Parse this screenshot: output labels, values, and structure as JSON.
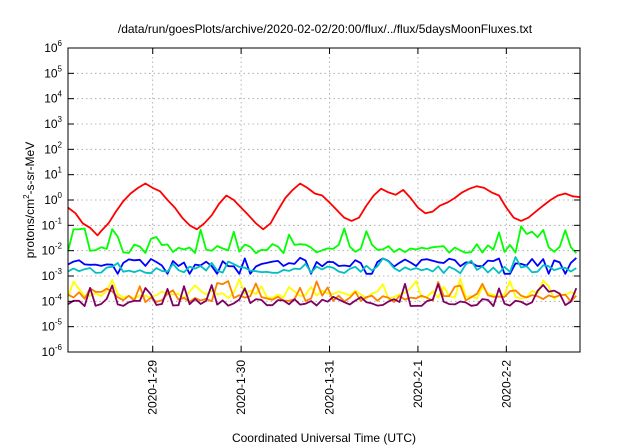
{
  "chart_data": {
    "type": "line",
    "title": "/data/run/goesPlots/archive/2020-02-02/20:00/flux/../flux/5daysMoonFluxes.txt",
    "xlabel": "Coordinated Universal Time (UTC)",
    "ylabel": {
      "base": "protons/cm",
      "sup": "2",
      "rest": "-s-sr-MeV"
    },
    "y_scale": "log",
    "ylim": [
      1e-06,
      1000000.0
    ],
    "y_ticks": [
      {
        "exp": "-6",
        "value": 1e-06
      },
      {
        "exp": "-5",
        "value": 1e-05
      },
      {
        "exp": "-4",
        "value": 0.0001
      },
      {
        "exp": "-3",
        "value": 0.001
      },
      {
        "exp": "-2",
        "value": 0.01
      },
      {
        "exp": "-1",
        "value": 0.1
      },
      {
        "exp": "0",
        "value": 1
      },
      {
        "exp": "1",
        "value": 10.0
      },
      {
        "exp": "2",
        "value": 100.0
      },
      {
        "exp": "3",
        "value": 1000.0
      },
      {
        "exp": "4",
        "value": 10000.0
      },
      {
        "exp": "5",
        "value": 100000.0
      },
      {
        "exp": "6",
        "value": 1000000.0
      }
    ],
    "y_tick_base": "10",
    "xlim": [
      "2020-01-28T01:00",
      "2020-02-02T20:00"
    ],
    "x_ticks": [
      {
        "label": "2020-1-29",
        "value": "2020-01-29T00:00"
      },
      {
        "label": "2020-1-30",
        "value": "2020-01-30T00:00"
      },
      {
        "label": "2020-1-31",
        "value": "2020-01-31T00:00"
      },
      {
        "label": "2020-2-1",
        "value": "2020-02-01T00:00"
      },
      {
        "label": "2020-2-2",
        "value": "2020-02-02T00:00"
      }
    ],
    "grid": true,
    "legend": "none",
    "series": [
      {
        "color": "#ff0000",
        "points": [
          [
            "2020-01-28T01:00",
            0.5
          ],
          [
            "2020-01-28T03:00",
            0.3
          ],
          [
            "2020-01-28T05:00",
            0.12
          ],
          [
            "2020-01-28T07:00",
            0.08
          ],
          [
            "2020-01-28T09:00",
            0.04
          ],
          [
            "2020-01-28T10:00",
            0.06
          ],
          [
            "2020-01-28T12:00",
            0.12
          ],
          [
            "2020-01-28T14:00",
            0.35
          ],
          [
            "2020-01-28T16:00",
            0.9
          ],
          [
            "2020-01-28T18:00",
            1.8
          ],
          [
            "2020-01-28T20:00",
            3.0
          ],
          [
            "2020-01-28T22:00",
            4.5
          ],
          [
            "2020-01-29T00:00",
            3.0
          ],
          [
            "2020-01-29T02:00",
            2.2
          ],
          [
            "2020-01-29T04:00",
            1.0
          ],
          [
            "2020-01-29T06:00",
            0.5
          ],
          [
            "2020-01-29T08:00",
            0.2
          ],
          [
            "2020-01-29T10:00",
            0.1
          ],
          [
            "2020-01-29T12:00",
            0.07
          ],
          [
            "2020-01-29T14:00",
            0.12
          ],
          [
            "2020-01-29T16:00",
            0.25
          ],
          [
            "2020-01-29T18:00",
            0.7
          ],
          [
            "2020-01-29T20:00",
            1.5
          ],
          [
            "2020-01-29T22:00",
            1.0
          ],
          [
            "2020-01-30T00:00",
            0.5
          ],
          [
            "2020-01-30T02:00",
            0.25
          ],
          [
            "2020-01-30T04:00",
            0.12
          ],
          [
            "2020-01-30T06:00",
            0.07
          ],
          [
            "2020-01-30T08:00",
            0.12
          ],
          [
            "2020-01-30T10:00",
            0.4
          ],
          [
            "2020-01-30T12:00",
            1.2
          ],
          [
            "2020-01-30T14:00",
            2.5
          ],
          [
            "2020-01-30T16:00",
            4.5
          ],
          [
            "2020-01-30T18:00",
            3.0
          ],
          [
            "2020-01-30T20:00",
            1.8
          ],
          [
            "2020-01-30T22:00",
            1.5
          ],
          [
            "2020-01-31T00:00",
            0.8
          ],
          [
            "2020-01-31T02:00",
            0.4
          ],
          [
            "2020-01-31T04:00",
            0.2
          ],
          [
            "2020-01-31T06:00",
            0.15
          ],
          [
            "2020-01-31T08:00",
            0.2
          ],
          [
            "2020-01-31T10:00",
            0.6
          ],
          [
            "2020-01-31T12:00",
            1.5
          ],
          [
            "2020-01-31T14:00",
            2.8
          ],
          [
            "2020-01-31T16:00",
            2.0
          ],
          [
            "2020-01-31T18:00",
            1.6
          ],
          [
            "2020-01-31T20:00",
            2.5
          ],
          [
            "2020-01-31T22:00",
            1.2
          ],
          [
            "2020-02-01T00:00",
            0.5
          ],
          [
            "2020-02-01T02:00",
            0.3
          ],
          [
            "2020-02-01T04:00",
            0.35
          ],
          [
            "2020-02-01T06:00",
            0.6
          ],
          [
            "2020-02-01T08:00",
            0.8
          ],
          [
            "2020-02-01T10:00",
            1.2
          ],
          [
            "2020-02-01T12:00",
            2.0
          ],
          [
            "2020-02-01T14:00",
            2.8
          ],
          [
            "2020-02-01T16:00",
            3.5
          ],
          [
            "2020-02-01T18:00",
            3.0
          ],
          [
            "2020-02-01T20:00",
            2.0
          ],
          [
            "2020-02-01T22:00",
            1.5
          ],
          [
            "2020-02-02T00:00",
            0.5
          ],
          [
            "2020-02-02T02:00",
            0.2
          ],
          [
            "2020-02-02T04:00",
            0.15
          ],
          [
            "2020-02-02T06:00",
            0.2
          ],
          [
            "2020-02-02T08:00",
            0.35
          ],
          [
            "2020-02-02T10:00",
            0.6
          ],
          [
            "2020-02-02T12:00",
            1.0
          ],
          [
            "2020-02-02T14:00",
            1.5
          ],
          [
            "2020-02-02T16:00",
            1.8
          ],
          [
            "2020-02-02T18:00",
            1.4
          ],
          [
            "2020-02-02T20:00",
            1.3
          ]
        ]
      },
      {
        "color": "#00ff00",
        "baseline": 0.012,
        "spread": 0.38,
        "spike": 0.08,
        "seed": 11
      },
      {
        "color": "#0000ff",
        "baseline": 0.0035,
        "spread": 0.35,
        "spike": -0.0011,
        "seed": 23
      },
      {
        "color": "#00c0c0",
        "baseline": 0.0018,
        "spread": 0.3,
        "spike": 0.004,
        "seed": 37
      },
      {
        "color": "#ffff00",
        "baseline": 0.00018,
        "spread": 0.35,
        "spike": 0.0006,
        "seed": 41
      },
      {
        "color": "#ff8000",
        "baseline": 0.00013,
        "spread": 0.3,
        "spike": 0.0005,
        "seed": 53
      },
      {
        "color": "#800060",
        "baseline": 9e-05,
        "spread": 0.3,
        "spike": 0.0004,
        "seed": 67
      }
    ]
  }
}
